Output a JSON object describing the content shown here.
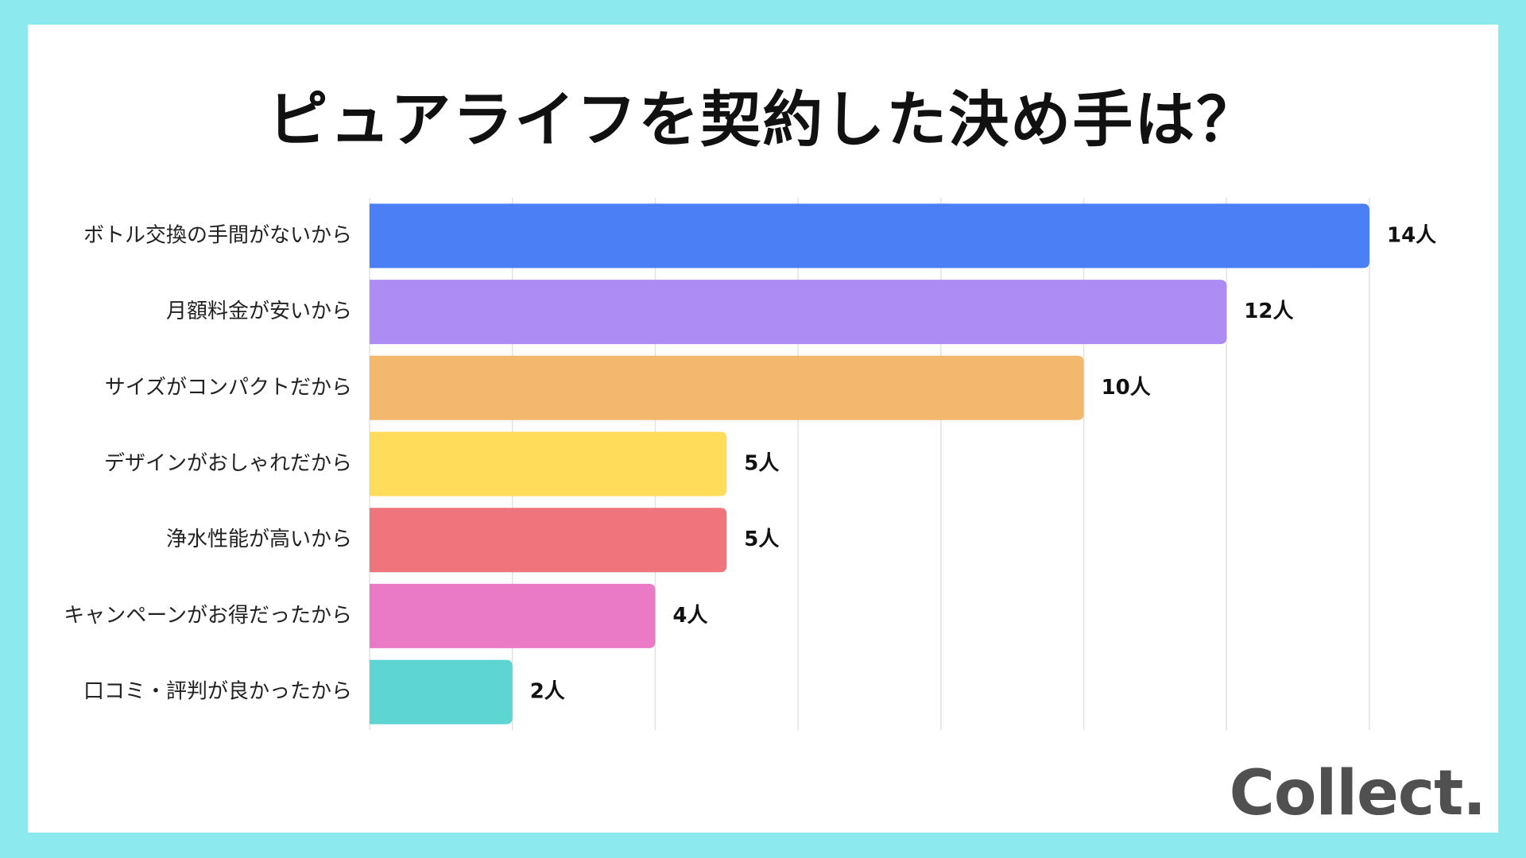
{
  "title": "ピュアライフを契約した決め手は？",
  "logo": "Collect.",
  "chart_data": {
    "type": "bar",
    "orientation": "horizontal",
    "title": "ピュアライフを契約した決め手は？",
    "categories": [
      "ボトル交換の手間がないから",
      "月額料金が安いから",
      "サイズがコンパクトだから",
      "デザインがおしゃれだから",
      "浄水性能が高いから",
      "キャンペーンがお得だったから",
      "口コミ・評判が良かったから"
    ],
    "values": [
      14,
      12,
      10,
      5,
      5,
      4,
      2
    ],
    "value_labels": [
      "14人",
      "12人",
      "10人",
      "5人",
      "5人",
      "4人",
      "2人"
    ],
    "colors": [
      "#4a7ff5",
      "#ad8cf4",
      "#f3b86e",
      "#ffdd5b",
      "#ef747b",
      "#eb7ac6",
      "#5dd5d3"
    ],
    "xlim": [
      0,
      14
    ],
    "grid": true,
    "xlabel": "",
    "ylabel": ""
  }
}
